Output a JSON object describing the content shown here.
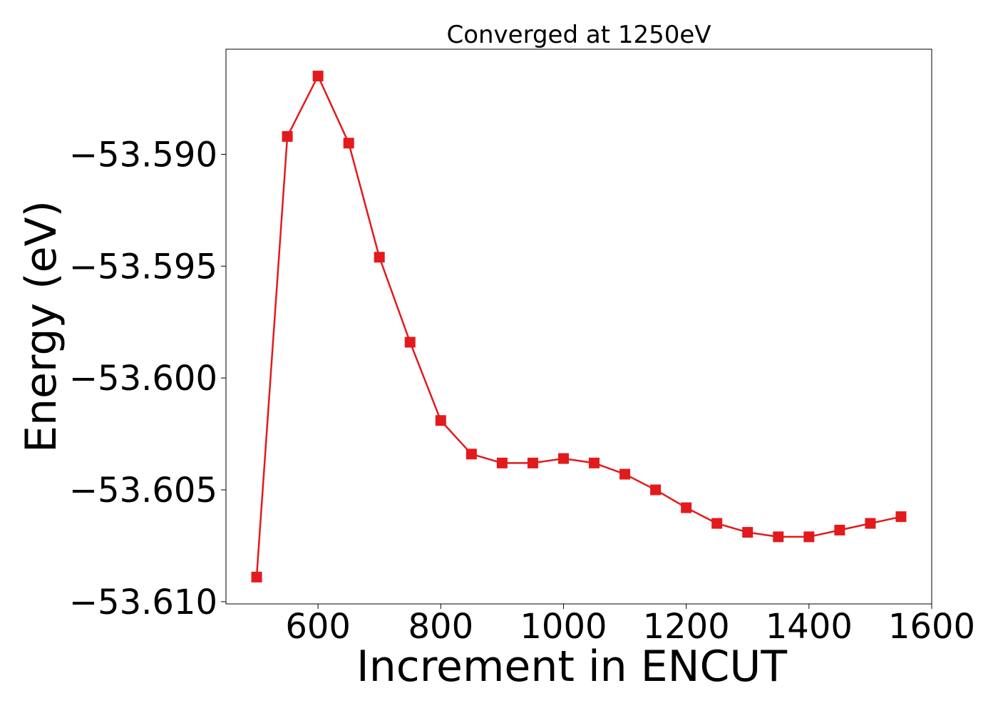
{
  "chart_data": {
    "type": "line",
    "title": "Converged at 1250eV",
    "xlabel": "Increment in ENCUT",
    "ylabel": "Energy (eV)",
    "xlim": [
      450,
      1600
    ],
    "ylim": [
      -53.6101,
      -53.5853
    ],
    "x_ticks": [
      600,
      800,
      1000,
      1200,
      1400,
      1600
    ],
    "x_tick_labels": [
      "600",
      "800",
      "1000",
      "1200",
      "1400",
      "1600"
    ],
    "y_ticks": [
      -53.59,
      -53.595,
      -53.6,
      -53.605,
      -53.61
    ],
    "y_tick_labels": [
      "−53.590",
      "−53.595",
      "−53.600",
      "−53.605",
      "−53.610"
    ],
    "grid": false,
    "series": [
      {
        "color": "#e31a1c",
        "marker": "square",
        "x": [
          500,
          550,
          600,
          650,
          700,
          750,
          800,
          850,
          900,
          950,
          1000,
          1050,
          1100,
          1150,
          1200,
          1250,
          1300,
          1350,
          1400,
          1450,
          1500,
          1550
        ],
        "y": [
          -53.6089,
          -53.5892,
          -53.5865,
          -53.5895,
          -53.5946,
          -53.5984,
          -53.6019,
          -53.6034,
          -53.6038,
          -53.6038,
          -53.6036,
          -53.6038,
          -53.6043,
          -53.605,
          -53.6058,
          -53.6065,
          -53.6069,
          -53.6071,
          -53.6071,
          -53.6068,
          -53.6065,
          -53.6062
        ]
      }
    ]
  }
}
